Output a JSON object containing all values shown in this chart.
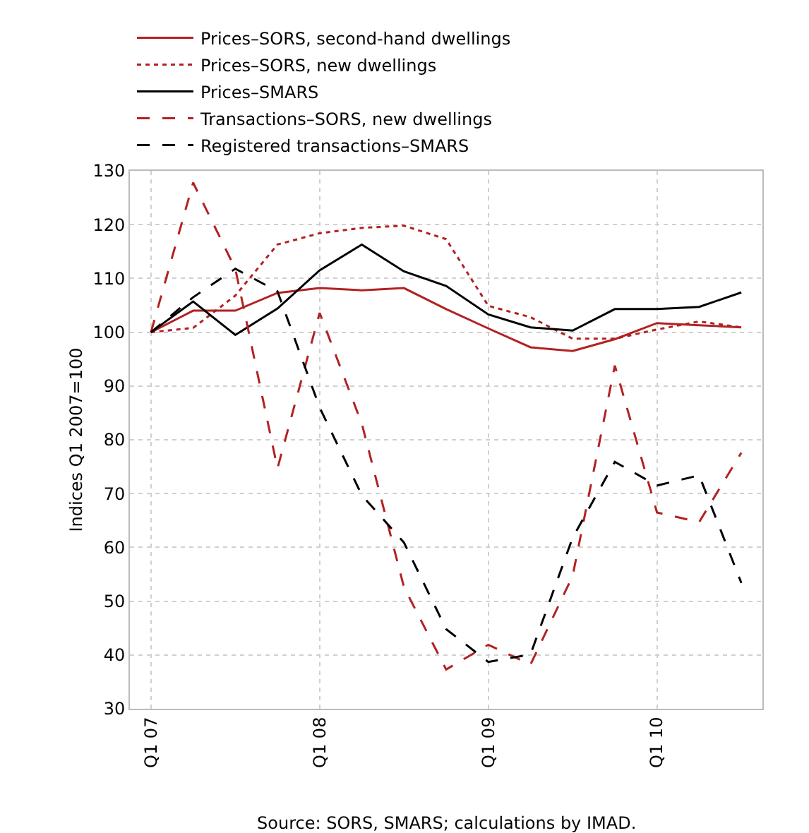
{
  "chart_data": {
    "type": "line",
    "ylabel": "Indices Q1 2007=100",
    "categories": [
      "Q1 07",
      null,
      null,
      null,
      "Q1 08",
      null,
      null,
      null,
      "Q1 09",
      null,
      null,
      null,
      "Q1 10",
      null,
      null
    ],
    "series": [
      {
        "name": "Prices–SORS, second-hand dwellings",
        "color": "#b22222",
        "line_style": "solid",
        "values": [
          100,
          104,
          104,
          107.3,
          108.2,
          107.8,
          108.2,
          104.3,
          100.7,
          97.2,
          96.5,
          98.7,
          101.7,
          101.3,
          100.9
        ]
      },
      {
        "name": "Prices–SORS, new dwellings",
        "color": "#b22222",
        "line_style": "dotted",
        "values": [
          100,
          100.8,
          106.8,
          116.3,
          118.4,
          119.4,
          119.8,
          117.3,
          104.9,
          102.8,
          98.8,
          98.8,
          100.5,
          102,
          100.9
        ]
      },
      {
        "name": "Prices–SMARS",
        "color": "#000000",
        "line_style": "solid",
        "values": [
          100,
          105.7,
          99.5,
          104.4,
          111.5,
          116.3,
          111.3,
          108.6,
          103.3,
          100.9,
          100.3,
          104.3,
          104.3,
          104.7,
          107.4
        ]
      },
      {
        "name": "Transactions–SORS, new dwellings",
        "color": "#b22222",
        "line_style": "dashed",
        "values": [
          100,
          127.8,
          111.8,
          74.7,
          103.6,
          83,
          52.6,
          37.3,
          41.9,
          38.2,
          54.7,
          93.8,
          66.5,
          64.7,
          77.6
        ]
      },
      {
        "name": "Registered transactions–SMARS",
        "color": "#000000",
        "line_style": "dashed",
        "values": [
          100,
          106.5,
          111.8,
          107.6,
          86,
          69.7,
          60.9,
          44.8,
          38.7,
          40.1,
          61.8,
          75.9,
          71.5,
          73.4,
          53.4
        ]
      }
    ],
    "ylim": [
      30,
      130
    ],
    "yticks": [
      30,
      40,
      50,
      60,
      70,
      80,
      90,
      100,
      110,
      120,
      130
    ],
    "grid": true,
    "legend": "top left",
    "marker": "none",
    "annotations": [
      "Source: SORS, SMARS; calculations by IMAD."
    ]
  }
}
